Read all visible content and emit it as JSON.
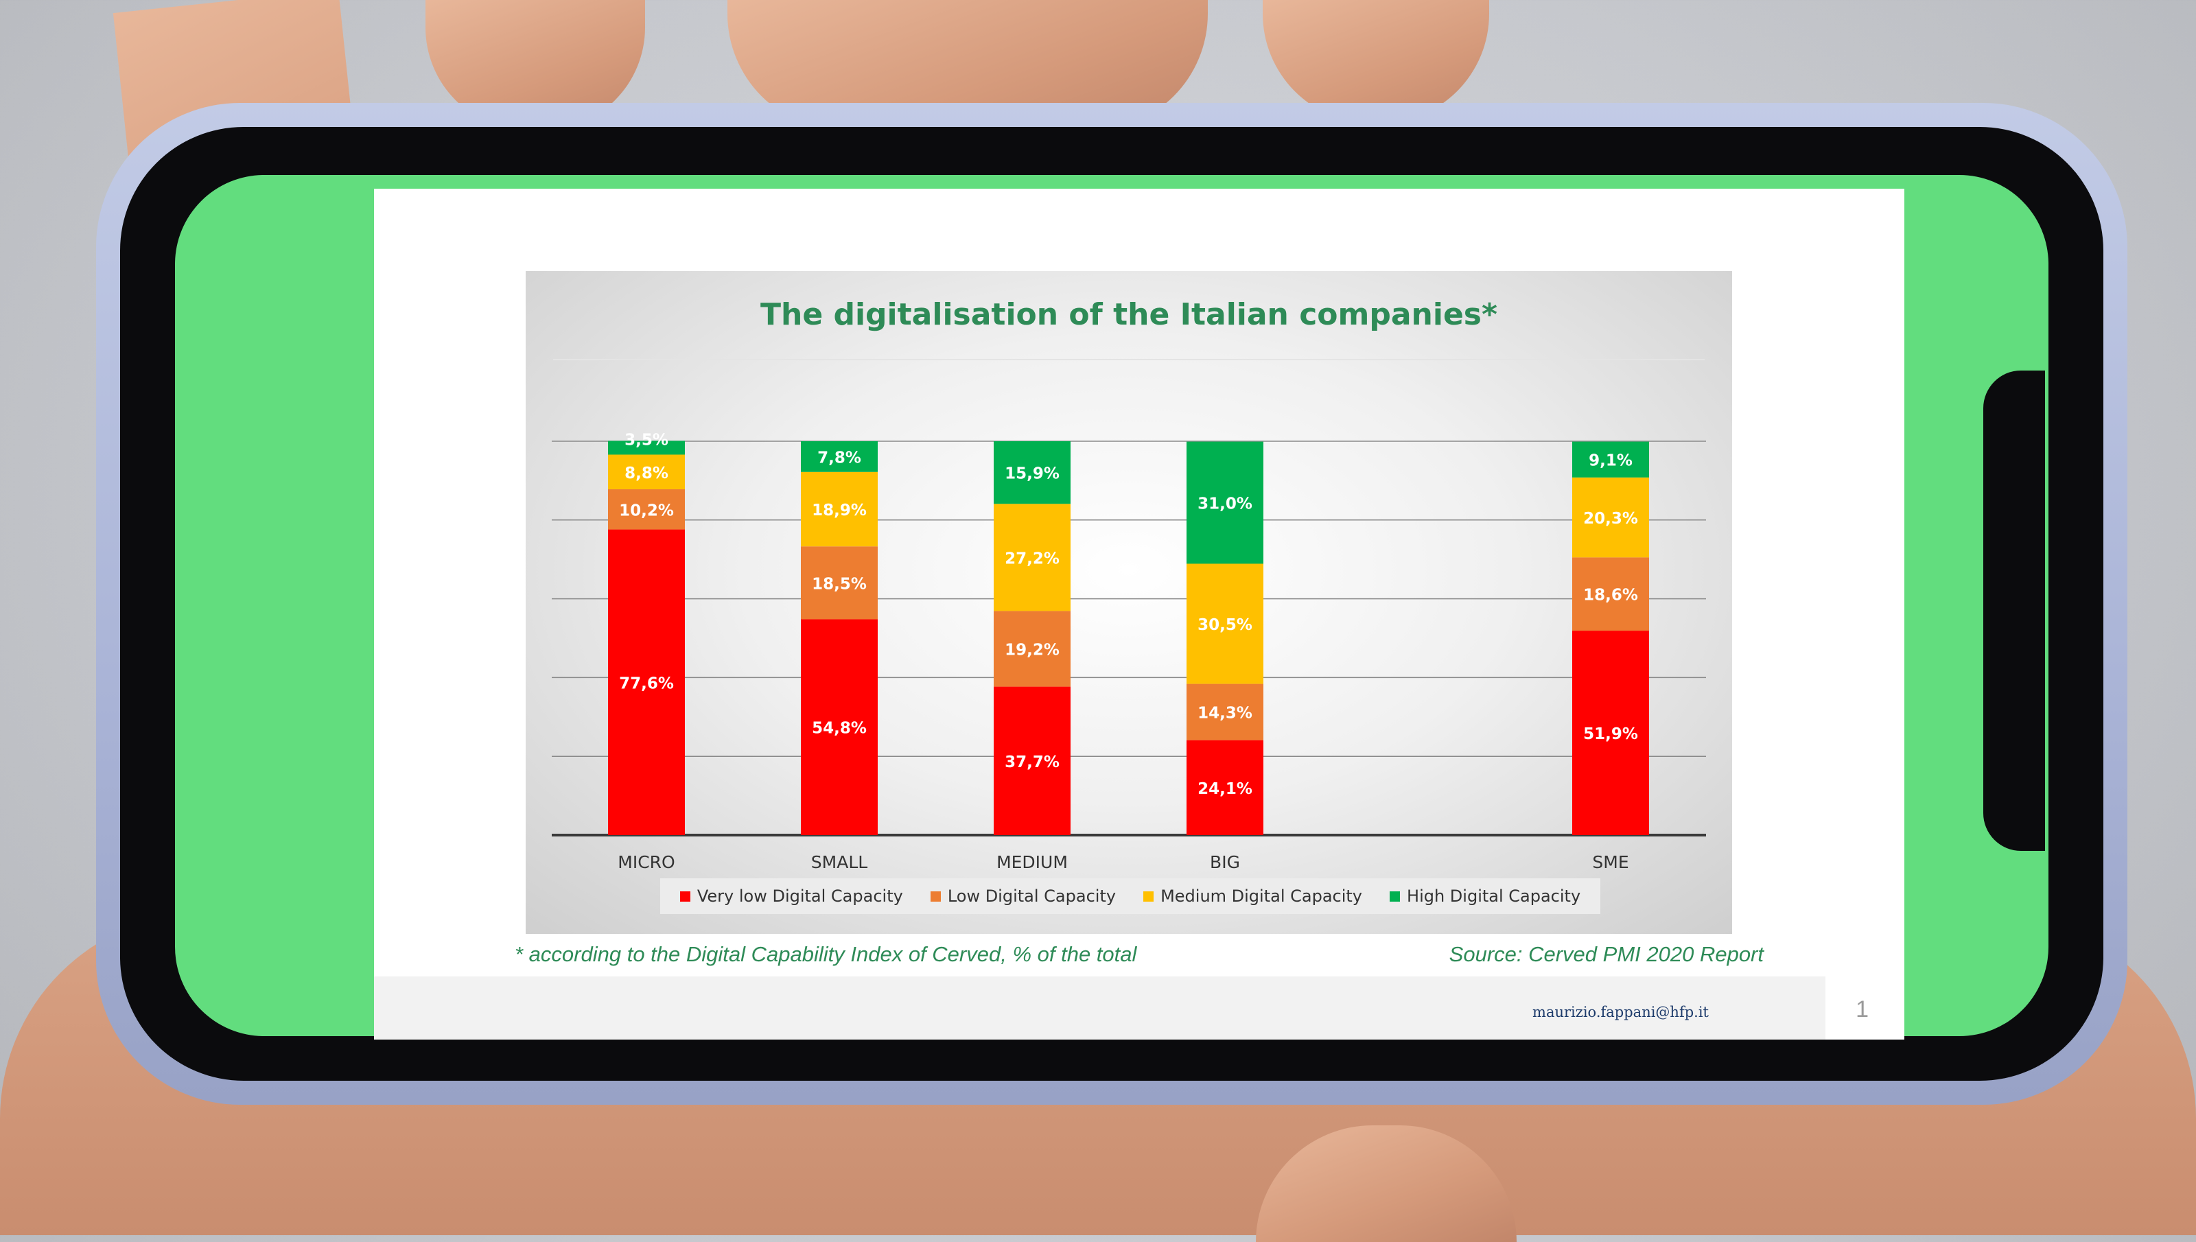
{
  "slide": {
    "footnote": "* according to the Digital Capability Index of Cerved, % of the total",
    "source": "Source: Cerved PMI 2020 Report",
    "email": "maurizio.fappani@hfp.it",
    "page_number": "1"
  },
  "colors": {
    "very_low": "#ff0000",
    "low": "#ed7d31",
    "medium": "#ffc000",
    "high": "#00b050",
    "title": "#2e8b57"
  },
  "chart_data": {
    "type": "bar",
    "stacked": true,
    "title": "The digitalisation of the Italian companies*",
    "xlabel": "",
    "ylabel": "",
    "ylim": [
      0,
      100
    ],
    "grid": true,
    "legend_position": "bottom",
    "categories": [
      "MICRO",
      "SMALL",
      "MEDIUM",
      "BIG",
      "SME"
    ],
    "series": [
      {
        "name": "Very low Digital Capacity",
        "color": "#ff0000",
        "values": [
          77.6,
          54.8,
          37.7,
          24.1,
          51.9
        ],
        "labels": [
          "77,6%",
          "54,8%",
          "37,7%",
          "24,1%",
          "51,9%"
        ]
      },
      {
        "name": "Low Digital Capacity",
        "color": "#ed7d31",
        "values": [
          10.2,
          18.5,
          19.2,
          14.3,
          18.6
        ],
        "labels": [
          "10,2%",
          "18,5%",
          "19,2%",
          "14,3%",
          "18,6%"
        ]
      },
      {
        "name": "Medium Digital Capacity",
        "color": "#ffc000",
        "values": [
          8.8,
          18.9,
          27.2,
          30.5,
          20.3
        ],
        "labels": [
          "8,8%",
          "18,9%",
          "27,2%",
          "30,5%",
          "20,3%"
        ]
      },
      {
        "name": "High Digital Capacity",
        "color": "#00b050",
        "values": [
          3.5,
          7.8,
          15.9,
          31.0,
          9.1
        ],
        "labels": [
          "3,5%",
          "7,8%",
          "15,9%",
          "31,0%",
          "9,1%"
        ]
      }
    ]
  }
}
